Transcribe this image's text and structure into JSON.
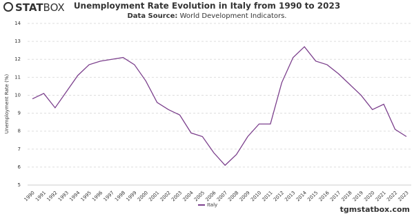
{
  "brand": {
    "bold": "STAT",
    "light": "BOX"
  },
  "footer": "tgmstatbox.com",
  "chart_data": {
    "type": "line",
    "title": "Unemployment Rate Evolution in Italy from 1990 to 2023",
    "subtitle_label": "Data Source:",
    "subtitle": "World Development Indicators.",
    "y_label": "Unemployment Rate (%)",
    "categories": [
      "1990",
      "1991",
      "1992",
      "1993",
      "1994",
      "1995",
      "1996",
      "1997",
      "1998",
      "1999",
      "2000",
      "2001",
      "2002",
      "2003",
      "2004",
      "2005",
      "2006",
      "2007",
      "2008",
      "2009",
      "2010",
      "2011",
      "2012",
      "2013",
      "2014",
      "2015",
      "2016",
      "2017",
      "2018",
      "2019",
      "2020",
      "2021",
      "2022",
      "2023"
    ],
    "series": [
      {
        "name": "Italy",
        "color": "#7b3f8c",
        "values": [
          9.8,
          10.1,
          9.3,
          10.2,
          11.1,
          11.7,
          11.9,
          12.0,
          12.1,
          11.7,
          10.8,
          9.6,
          9.2,
          8.9,
          7.9,
          7.7,
          6.8,
          6.1,
          6.7,
          7.7,
          8.4,
          8.4,
          10.7,
          12.1,
          12.7,
          11.9,
          11.7,
          11.2,
          10.6,
          10.0,
          9.2,
          9.5,
          8.1,
          7.7
        ]
      }
    ],
    "ylim": [
      5,
      14
    ],
    "yticks": [
      5,
      6,
      7,
      8,
      9,
      10,
      11,
      12,
      13,
      14
    ],
    "grid": true
  }
}
